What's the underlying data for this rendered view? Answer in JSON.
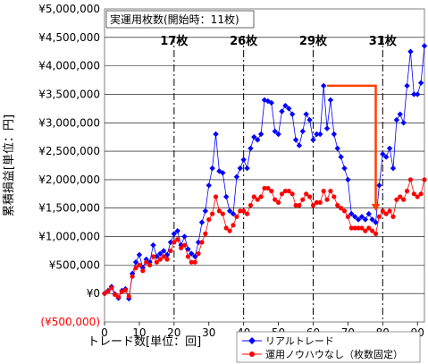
{
  "chart_data": {
    "type": "line",
    "xlabel": "トレード数[単位：回]",
    "ylabel": "累積損益[単位：円]",
    "xlim": [
      0,
      92
    ],
    "ylim": [
      -500000,
      5000000
    ],
    "xticks": [
      "0",
      "10",
      "20",
      "30",
      "40",
      "50",
      "60",
      "70",
      "80",
      "90"
    ],
    "yticks": [
      "¥5,000,000",
      "¥4,500,000",
      "¥4,000,000",
      "¥3,500,000",
      "¥3,000,000",
      "¥2,500,000",
      "¥2,000,000",
      "¥1,500,000",
      "¥1,000,000",
      "¥500,000",
      "¥0",
      "(¥500,000)"
    ],
    "annotation_box": "実運用枚数(開始時：11枚)",
    "milestones": [
      {
        "x": 20,
        "label": "17枚"
      },
      {
        "x": 40,
        "label": "26枚"
      },
      {
        "x": 60,
        "label": "29枚"
      },
      {
        "x": 80,
        "label": "31枚"
      }
    ],
    "legend_position": "bottom-right",
    "series": [
      {
        "name": "リアルトレード",
        "color": "#0000ff",
        "marker": "diamond",
        "values": [
          0,
          50000,
          120000,
          -10000,
          -80000,
          50000,
          80000,
          -90000,
          350000,
          550000,
          680000,
          450000,
          600000,
          550000,
          850000,
          650000,
          700000,
          750000,
          680000,
          900000,
          1050000,
          1100000,
          850000,
          1000000,
          780000,
          700000,
          650000,
          900000,
          1250000,
          1450000,
          1900000,
          2200000,
          2800000,
          2150000,
          2120000,
          1700000,
          1450000,
          1400000,
          2050000,
          2200000,
          2350000,
          2200000,
          2550000,
          2750000,
          2700000,
          2800000,
          3400000,
          3380000,
          3350000,
          2850000,
          2800000,
          3200000,
          3300000,
          3250000,
          3150000,
          2700000,
          2600000,
          2850000,
          3150000,
          3050000,
          2700000,
          2800000,
          2800000,
          3650000,
          2900000,
          3400000,
          2800000,
          2550000,
          2400000,
          2200000,
          2000000,
          1400000,
          1350000,
          1300000,
          1350000,
          1300000,
          1400000,
          1300000,
          1250000,
          1900000,
          2450000,
          2400000,
          2550000,
          2200000,
          3050000,
          3150000,
          3000000,
          3650000,
          4250000,
          3500000,
          3500000,
          3700000,
          4350000
        ]
      },
      {
        "name": "運用ノウハウなし（枚数固定）",
        "color": "#ff0000",
        "marker": "circle",
        "values": [
          0,
          40000,
          100000,
          -20000,
          -60000,
          30000,
          60000,
          -50000,
          300000,
          450000,
          500000,
          400000,
          550000,
          500000,
          650000,
          550000,
          600000,
          650000,
          600000,
          750000,
          900000,
          950000,
          800000,
          850000,
          650000,
          550000,
          550000,
          700000,
          900000,
          1050000,
          1300000,
          1400000,
          1700000,
          1450000,
          1400000,
          1150000,
          1100000,
          1200000,
          1350000,
          1450000,
          1450000,
          1400000,
          1550000,
          1700000,
          1650000,
          1700000,
          1850000,
          1850000,
          1800000,
          1650000,
          1600000,
          1750000,
          1800000,
          1800000,
          1750000,
          1550000,
          1550000,
          1650000,
          1750000,
          1700000,
          1550000,
          1600000,
          1600000,
          1800000,
          1650000,
          1800000,
          1700000,
          1550000,
          1500000,
          1450000,
          1350000,
          1150000,
          1150000,
          1150000,
          1150000,
          1100000,
          1150000,
          1100000,
          1050000,
          1350000,
          1450000,
          1400000,
          1450000,
          1350000,
          1650000,
          1700000,
          1650000,
          1800000,
          2000000,
          1750000,
          1700000,
          1750000,
          2000000
        ]
      }
    ]
  },
  "series_arrow": {
    "from_x": 64,
    "to_x": 78,
    "y": 3650000,
    "to_y": 1450000,
    "color": "#ff4000"
  }
}
